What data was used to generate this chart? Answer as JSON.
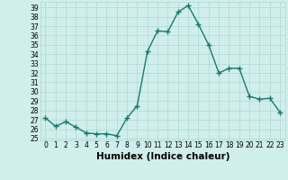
{
  "x": [
    0,
    1,
    2,
    3,
    4,
    5,
    6,
    7,
    8,
    9,
    10,
    11,
    12,
    13,
    14,
    15,
    16,
    17,
    18,
    19,
    20,
    21,
    22,
    23
  ],
  "y": [
    27.2,
    26.3,
    26.8,
    26.2,
    25.6,
    25.5,
    25.5,
    25.3,
    27.2,
    28.5,
    34.3,
    36.5,
    36.4,
    38.5,
    39.2,
    37.2,
    35.0,
    32.0,
    32.5,
    32.5,
    29.5,
    29.2,
    29.3,
    27.8
  ],
  "line_color": "#1a7a6e",
  "marker": "+",
  "marker_color": "#1a7a6e",
  "bg_color": "#d0eeeb",
  "grid_color": "#b0d8d4",
  "xlabel": "Humidex (Indice chaleur)",
  "xlim": [
    -0.5,
    23.5
  ],
  "ylim": [
    24.8,
    39.6
  ],
  "xtick_labels": [
    "0",
    "1",
    "2",
    "3",
    "4",
    "5",
    "6",
    "7",
    "8",
    "9",
    "10",
    "11",
    "12",
    "13",
    "14",
    "15",
    "16",
    "17",
    "18",
    "19",
    "20",
    "21",
    "22",
    "23"
  ],
  "ytick_values": [
    25,
    26,
    27,
    28,
    29,
    30,
    31,
    32,
    33,
    34,
    35,
    36,
    37,
    38,
    39
  ],
  "xlabel_fontsize": 7.5,
  "tick_fontsize": 5.5,
  "line_width": 1.0,
  "marker_size": 4
}
